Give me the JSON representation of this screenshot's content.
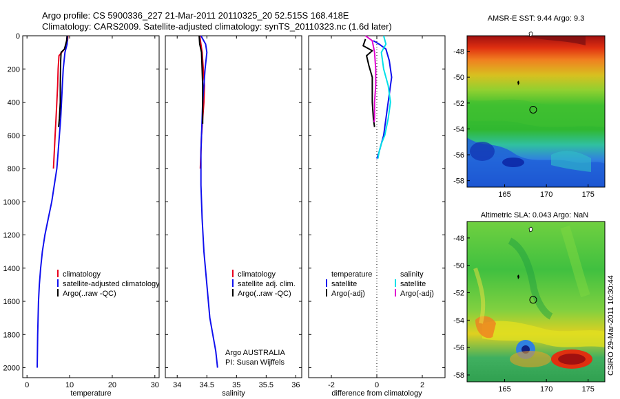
{
  "header": {
    "line1": "Argo profile: CS 5900336_227 21-Mar-2011 20110325_20 52.515S 168.418E",
    "line2": "Climatology: CARS2009. Satellite-adjusted climatology: synTS_20110323.nc (1.6d later)"
  },
  "side_label": "CSIRO 29-Mar-2011 10:30:44",
  "colors": {
    "climatology": "#e8001c",
    "satellite": "#1010ee",
    "argo": "#000000",
    "satellite_salinity": "#00e0e8",
    "argo_adj_salinity": "#e000d0"
  },
  "chart_data": [
    {
      "type": "line",
      "id": "temperature-profile",
      "xlabel": "temperature",
      "ylabel": "",
      "xlim": [
        -1,
        31
      ],
      "ylim": [
        2060,
        0
      ],
      "xticks": [
        0,
        10,
        20,
        30
      ],
      "yticks": [
        0,
        200,
        400,
        600,
        800,
        1000,
        1200,
        1400,
        1600,
        1800,
        2000
      ],
      "legend": [
        "climatology",
        "satellite-adjusted climatology",
        "Argo(..raw -QC)"
      ],
      "series": [
        {
          "name": "climatology",
          "color_key": "climatology",
          "x": [
            9.6,
            9.5,
            8.8,
            7.5,
            7.3,
            7.2,
            7.0,
            6.8,
            6.6,
            6.4,
            6.2
          ],
          "y": [
            0,
            30,
            80,
            120,
            200,
            300,
            400,
            500,
            600,
            700,
            800
          ]
        },
        {
          "name": "satellite-adjusted climatology",
          "color_key": "satellite",
          "x": [
            9.5,
            9.4,
            8.9,
            8.5,
            8.3,
            8.1,
            7.9,
            7.6,
            7.3,
            7.0,
            6.4,
            5.8,
            5.0,
            4.2,
            3.6,
            3.2,
            2.9,
            2.7,
            2.6,
            2.5,
            2.4
          ],
          "y": [
            0,
            50,
            100,
            200,
            300,
            400,
            500,
            600,
            700,
            800,
            900,
            1000,
            1100,
            1200,
            1300,
            1400,
            1500,
            1600,
            1700,
            1800,
            2000
          ]
        },
        {
          "name": "Argo(..raw -QC)",
          "color_key": "argo",
          "x": [
            9.4,
            9.3,
            8.8,
            8.0,
            7.9,
            7.8,
            7.8,
            7.6,
            7.4
          ],
          "y": [
            0,
            30,
            80,
            100,
            150,
            300,
            400,
            500,
            550
          ]
        }
      ]
    },
    {
      "type": "line",
      "id": "salinity-profile",
      "xlabel": "salinity",
      "ylabel": "",
      "xlim": [
        33.8,
        36.1
      ],
      "ylim": [
        2060,
        0
      ],
      "xticks": [
        34,
        34.5,
        35,
        35.5,
        36
      ],
      "legend": [
        "climatology",
        "satellite adj. clim.",
        "Argo(..raw -QC)"
      ],
      "annotation": [
        "Argo AUSTRALIA",
        "PI: Susan Wijffels"
      ],
      "series": [
        {
          "name": "climatology",
          "color_key": "climatology",
          "x": [
            34.38,
            34.42,
            34.44,
            34.46,
            34.45,
            34.43,
            34.42,
            34.41,
            34.4,
            34.39
          ],
          "y": [
            0,
            100,
            200,
            300,
            400,
            500,
            550,
            600,
            700,
            800
          ]
        },
        {
          "name": "satellite adj. clim.",
          "color_key": "satellite",
          "x": [
            34.4,
            34.48,
            34.5,
            34.47,
            34.45,
            34.43,
            34.42,
            34.41,
            34.4,
            34.4,
            34.4,
            34.42,
            34.45,
            34.5,
            34.55,
            34.6,
            34.65,
            34.68
          ],
          "y": [
            0,
            50,
            100,
            200,
            300,
            400,
            500,
            600,
            700,
            800,
            900,
            1100,
            1300,
            1500,
            1700,
            1800,
            1900,
            2000
          ]
        },
        {
          "name": "Argo(..raw -QC)",
          "color_key": "argo",
          "x": [
            34.37,
            34.38,
            34.41,
            34.42,
            34.43,
            34.43,
            34.43,
            34.43
          ],
          "y": [
            0,
            50,
            100,
            200,
            300,
            400,
            500,
            530
          ]
        }
      ]
    },
    {
      "type": "line",
      "id": "difference-profile",
      "xlabel": "difference from climatology",
      "ylabel": "",
      "xlim": [
        -3,
        3
      ],
      "ylim": [
        2060,
        0
      ],
      "xticks": [
        -2,
        0,
        2
      ],
      "zero_line": 0,
      "legend_groups": [
        {
          "title": "temperature",
          "items": [
            "satellite",
            "Argo(-adj)"
          ]
        },
        {
          "title": "salinity",
          "items": [
            "satellite",
            "Argo(-adj)"
          ]
        }
      ],
      "series": [
        {
          "name": "temperature satellite",
          "color_key": "satellite",
          "x": [
            -0.15,
            0.1,
            0.4,
            0.55,
            0.65,
            0.6,
            0.5,
            0.4,
            0.3,
            0.2,
            0.1,
            0.0
          ],
          "y": [
            30,
            50,
            80,
            150,
            250,
            300,
            400,
            500,
            600,
            650,
            700,
            740
          ]
        },
        {
          "name": "temperature Argo(-adj)",
          "color_key": "argo",
          "x": [
            -0.5,
            -0.6,
            -0.2,
            -0.45,
            -0.35,
            -0.2,
            -0.2,
            -0.2,
            -0.15,
            -0.1
          ],
          "y": [
            20,
            60,
            90,
            120,
            180,
            250,
            300,
            400,
            500,
            550
          ]
        },
        {
          "name": "salinity satellite",
          "color_key": "satellite_salinity",
          "x": [
            0.3,
            0.4,
            0.2,
            0.3,
            0.5,
            0.6,
            0.5,
            0.35,
            0.2,
            0.1,
            0.05
          ],
          "y": [
            0,
            50,
            100,
            200,
            300,
            400,
            500,
            600,
            650,
            700,
            740
          ]
        },
        {
          "name": "salinity Argo(-adj)",
          "color_key": "argo_adj_salinity",
          "x": [
            -0.5,
            -0.2,
            -0.1,
            -0.05,
            -0.05,
            -0.1,
            -0.1,
            -0.12
          ],
          "y": [
            0,
            30,
            100,
            200,
            300,
            400,
            500,
            520
          ]
        }
      ]
    },
    {
      "type": "heatmap",
      "id": "sst-map",
      "title": "AMSR-E SST: 9.44 Argo: 9.3",
      "xlim": [
        160.5,
        177
      ],
      "ylim": [
        -58.5,
        -46.8
      ],
      "xticks": [
        165,
        170,
        175
      ],
      "yticks": [
        -48,
        -50,
        -52,
        -54,
        -56,
        -58
      ],
      "marker": {
        "lon": 168.418,
        "lat": -52.515
      }
    },
    {
      "type": "heatmap",
      "id": "sla-map",
      "title": "Altimetric SLA: 0.043 Argo: NaN",
      "xlim": [
        160.5,
        177
      ],
      "ylim": [
        -58.5,
        -46.8
      ],
      "xticks": [
        165,
        170,
        175
      ],
      "yticks": [
        -48,
        -50,
        -52,
        -54,
        -56,
        -58
      ],
      "marker": {
        "lon": 168.418,
        "lat": -52.515
      }
    }
  ]
}
